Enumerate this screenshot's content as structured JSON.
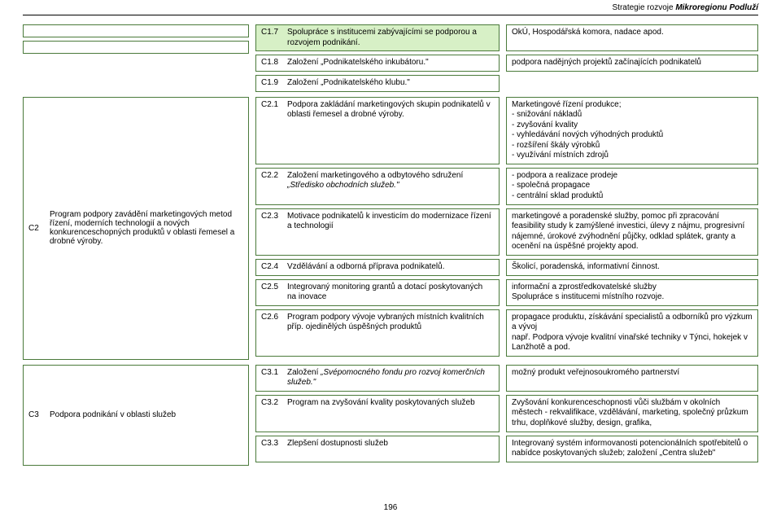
{
  "header": {
    "prefix": "Strategie rozvoje ",
    "emph": "Mikroregionu Podluží"
  },
  "page_number": "196",
  "top_mid": [
    {
      "code": "C1.7",
      "text": "Spolupráce s institucemi zabývajícími se podporou a rozvojem podnikání.",
      "green": true
    },
    {
      "code": "C1.8",
      "text": "Založení „Podnikatelského inkubátoru.\"",
      "green": false
    },
    {
      "code": "C1.9",
      "text": "Založení „Podnikatelského klubu.\"",
      "green": false
    }
  ],
  "top_right": [
    "OkÚ, Hospodářská komora, nadace apod.",
    "podpora nadějných projektů začínajících podnikatelů"
  ],
  "c2_left": {
    "code": "C2",
    "text": "Program podpory zavádění marketingo­vých metod řízení, moderních technologií a nových konkurenceschopných produktů v oblasti řemesel a drobné výroby."
  },
  "c2_mid": [
    {
      "code": "C2.1",
      "text": "Podpora zakládání marketingových skupin podnikatelů v oblasti řemesel a drobné výroby."
    },
    {
      "code": "C2.2",
      "text": "Založení marketingového a odbytového sdru­žení „Středisko obchodních služeb.\""
    },
    {
      "code": "C2.3",
      "text": "Motivace podnikatelů k investicím do moderni­zace řízení a technologií"
    },
    {
      "code": "C2.4",
      "text": "Vzdělávání a odborná příprava podnikatelů."
    },
    {
      "code": "C2.5",
      "text": "Integrovaný monitoring grantů a dotací poskytovaných na inovace"
    },
    {
      "code": "C2.6",
      "text": "Program podpory vývoje vybraných místních kvalitních příp. ojedinělých úspěšných produktů"
    }
  ],
  "c2_right": [
    "Marketingové řízení produkce;\n- snižování nákladů\n- zvyšování kvality\n- vyhledávání nových výhodných produktů\n- rozšíření škály výrobků\n- využívání místních zdrojů",
    "- podpora a realizace prodeje\n- společná propagace\n- centrální sklad produktů",
    "marketingové a poradenské služby, pomoc při zpracování feasibility study k zamýšlené investici, úlevy z nájmu, progresivní nájemné, úrokové zvýhodnění půjčky, odklad splátek, granty a ocenění na úspěšné projekty apod.",
    "Školicí, poradenská, informativní činnost.",
    "informační a zprostředkovatelské služby\nSpolupráce s institucemi místního rozvoje.",
    "propagace produktu, získávání specialistů a odborníků pro výzkum a vývoj\nnapř. Podpora vývoje kvalitní vinařské techniky v Týnci, hokejek v Lanžhotě a pod."
  ],
  "c3_left": {
    "code": "C3",
    "text": "Podpora podnikání v oblasti služeb"
  },
  "c3_mid": [
    {
      "code": "C3.1",
      "text": "Založení „Svépomocného fondu pro rozvoj komerčních služeb.\""
    },
    {
      "code": "C3.2",
      "text": "Program na zvyšování kvality poskytovaných služeb"
    },
    {
      "code": "C3.3",
      "text": "Zlepšení dostupnosti služeb"
    }
  ],
  "c3_right": [
    "možný produkt veřejnosoukromého partnerství",
    "Zvyšování konkurenceschopnosti vůči službám v okolních městech - rekvalifikace, vzdělávání, marketing, společný průzkum trhu, doplňkové služby, design, grafika,",
    "Integrovaný systém informovanosti potencionálních spotřebitelů o nabídce poskytovaných služeb; založení „Centra služeb\""
  ]
}
